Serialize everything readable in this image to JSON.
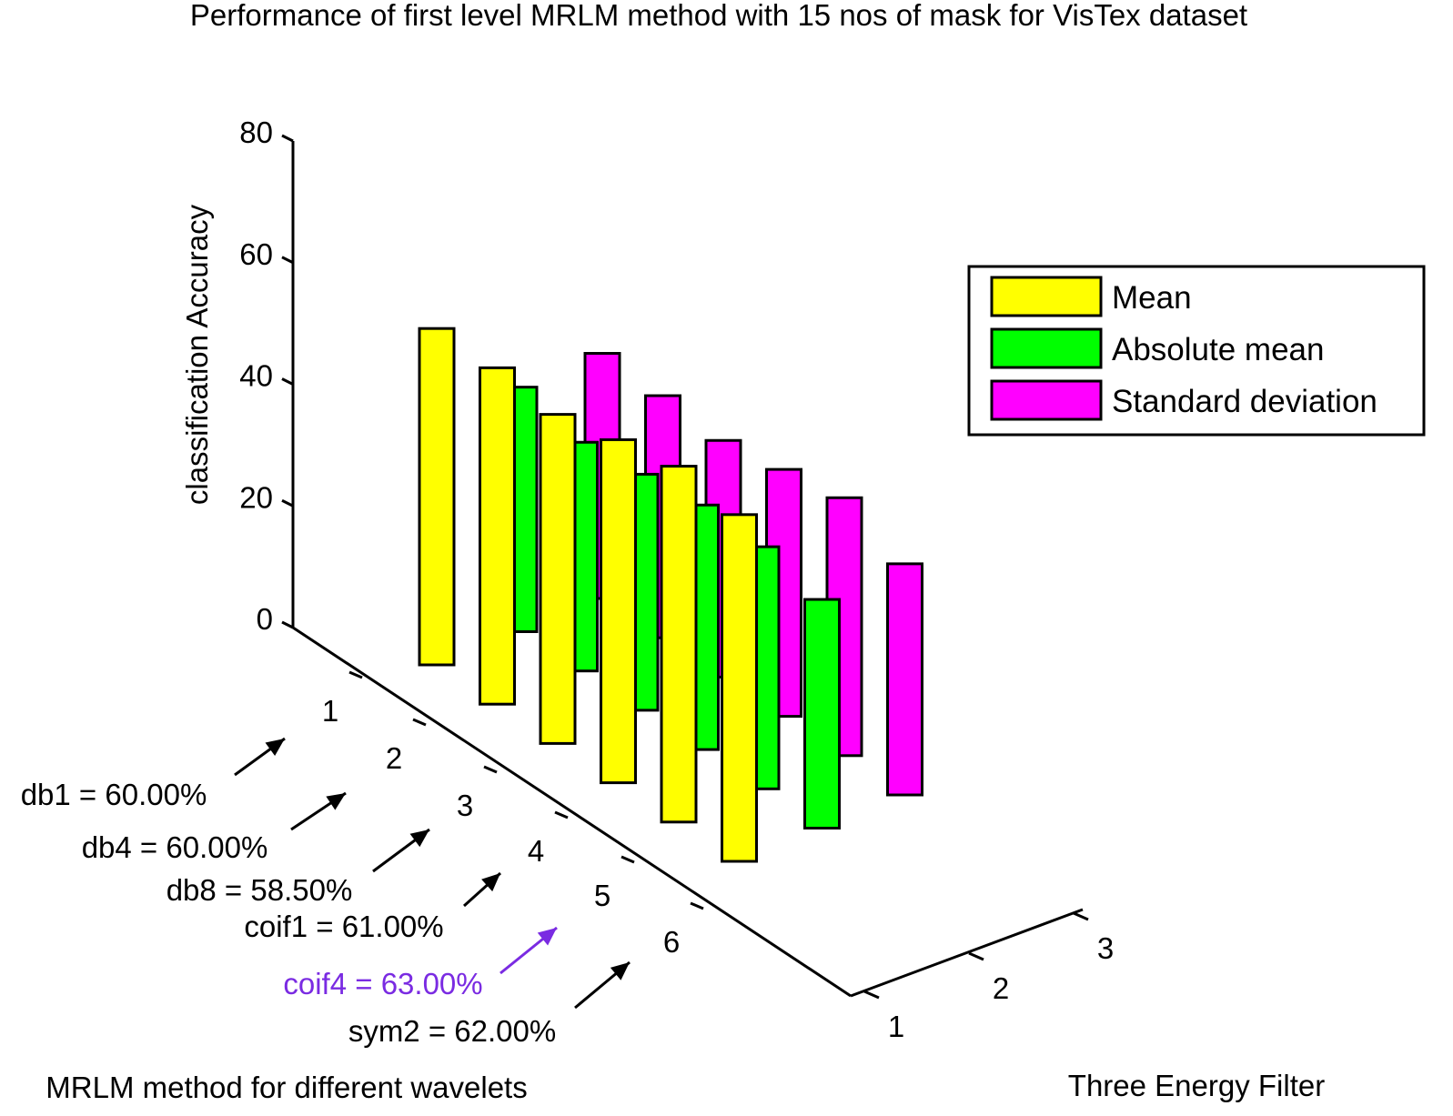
{
  "chart_data": {
    "type": "bar",
    "subtype": "3d-bar",
    "title": "Performance of first level MRLM method with 15 nos of mask for VisTex dataset",
    "xlabel": "MRLM method for different wavelets",
    "ylabel": "Three Energy Filter",
    "zlabel": "classification Accuracy",
    "categories": [
      "1",
      "2",
      "3",
      "4",
      "5",
      "6"
    ],
    "filter_ticks": [
      "1",
      "2",
      "3"
    ],
    "z_ticks": [
      "0",
      "20",
      "40",
      "60",
      "80"
    ],
    "zlim": [
      0,
      80
    ],
    "series": [
      {
        "name": "Mean",
        "color": "#ffff00",
        "values": [
          55.3,
          55.3,
          54.1,
          56.4,
          58.5,
          57.0
        ]
      },
      {
        "name": "Absolute mean",
        "color": "#00ff00",
        "values": [
          40.2,
          37.6,
          38.8,
          40.2,
          39.8,
          37.6
        ]
      },
      {
        "name": "Standard deviation",
        "color": "#ff00ff",
        "values": [
          40.3,
          39.8,
          38.9,
          40.6,
          42.4,
          38.0
        ]
      }
    ],
    "legend_position": "right",
    "annotations": [
      {
        "text": "db1 = 60.00%",
        "color": "#000000"
      },
      {
        "text": "db4 = 60.00%",
        "color": "#000000"
      },
      {
        "text": "db8 = 58.50%",
        "color": "#000000"
      },
      {
        "text": "coif1 = 61.00%",
        "color": "#000000"
      },
      {
        "text": "coif4 = 63.00%",
        "color": "#7a2be2"
      },
      {
        "text": "sym2 = 62.00%",
        "color": "#000000"
      }
    ]
  }
}
